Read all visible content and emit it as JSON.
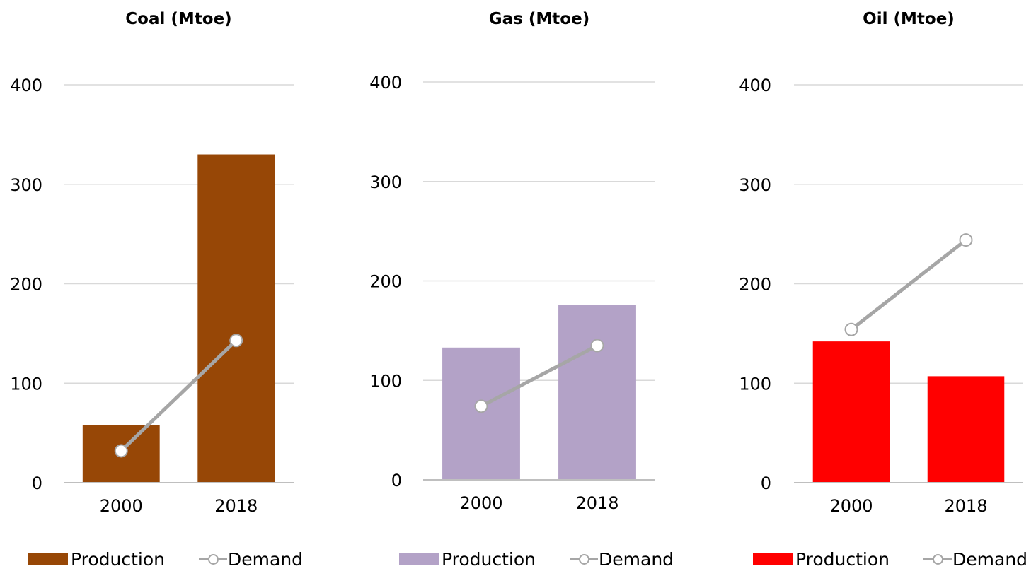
{
  "chart_data": [
    {
      "type": "bar",
      "title": "Coal (Mtoe)",
      "categories": [
        "2000",
        "2018"
      ],
      "yticks": [
        "0",
        "100",
        "200",
        "300",
        "400"
      ],
      "ylim": [
        0,
        400
      ],
      "grid": true,
      "legend_position": "bottom",
      "series": [
        {
          "name": "Production",
          "kind": "bar",
          "color": "#974706",
          "values": [
            58,
            330
          ]
        },
        {
          "name": "Demand",
          "kind": "line",
          "color": "#a6a6a6",
          "values": [
            32,
            143
          ]
        }
      ]
    },
    {
      "type": "bar",
      "title": "Gas (Mtoe)",
      "categories": [
        "2000",
        "2018"
      ],
      "yticks": [
        "0",
        "100",
        "200",
        "300",
        "400"
      ],
      "ylim": [
        0,
        400
      ],
      "grid": true,
      "legend_position": "bottom",
      "series": [
        {
          "name": "Production",
          "kind": "bar",
          "color": "#b3a2c7",
          "values": [
            133,
            176
          ]
        },
        {
          "name": "Demand",
          "kind": "line",
          "color": "#a6a6a6",
          "values": [
            74,
            135
          ]
        }
      ]
    },
    {
      "type": "bar",
      "title": "Oil (Mtoe)",
      "categories": [
        "2000",
        "2018"
      ],
      "yticks": [
        "0",
        "100",
        "200",
        "300",
        "400"
      ],
      "ylim": [
        0,
        400
      ],
      "grid": true,
      "legend_position": "bottom",
      "series": [
        {
          "name": "Production",
          "kind": "bar",
          "color": "#ff0000",
          "values": [
            142,
            107
          ]
        },
        {
          "name": "Demand",
          "kind": "line",
          "color": "#a6a6a6",
          "values": [
            154,
            244
          ]
        }
      ]
    }
  ]
}
